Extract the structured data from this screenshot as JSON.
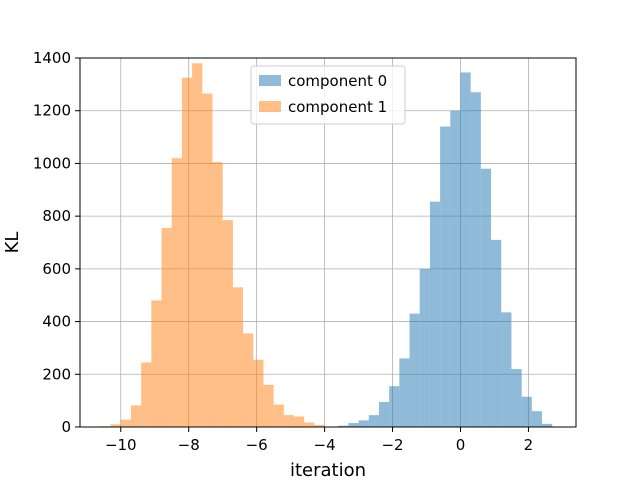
{
  "chart_data": {
    "type": "bar",
    "subtype": "overlaid-histogram",
    "title": "",
    "xlabel": "iteration",
    "ylabel": "KL",
    "xlim": [
      -11.2,
      3.4
    ],
    "ylim": [
      0,
      1400
    ],
    "xticks": [
      -10,
      -8,
      -6,
      -4,
      -2,
      0,
      2
    ],
    "xtick_labels": [
      "−10",
      "−8",
      "−6",
      "−4",
      "−2",
      "0",
      "2"
    ],
    "yticks": [
      0,
      200,
      400,
      600,
      800,
      1000,
      1200,
      1400
    ],
    "ytick_labels": [
      "0",
      "200",
      "400",
      "600",
      "800",
      "1000",
      "1200",
      "1400"
    ],
    "grid": true,
    "legend_position": "top-center",
    "series": [
      {
        "name": "component 0",
        "color": "#1f77b4",
        "opacity": 0.5,
        "bin_edges": [
          -3.6,
          -3.3,
          -3.0,
          -2.7,
          -2.4,
          -2.1,
          -1.8,
          -1.5,
          -1.2,
          -0.9,
          -0.6,
          -0.3,
          0.0,
          0.3,
          0.6,
          0.9,
          1.2,
          1.5,
          1.8,
          2.1,
          2.4,
          2.7
        ],
        "counts": [
          5,
          15,
          25,
          45,
          95,
          155,
          260,
          430,
          600,
          855,
          1140,
          1200,
          1345,
          1270,
          980,
          710,
          435,
          220,
          115,
          60,
          12
        ]
      },
      {
        "name": "component 1",
        "color": "#ff7f0e",
        "opacity": 0.5,
        "bin_edges": [
          -10.6,
          -10.3,
          -10.0,
          -9.7,
          -9.4,
          -9.1,
          -8.8,
          -8.5,
          -8.2,
          -7.9,
          -7.6,
          -7.3,
          -7.0,
          -6.7,
          -6.4,
          -6.1,
          -5.8,
          -5.5,
          -5.2,
          -4.9,
          -4.6,
          -4.3,
          -4.0
        ],
        "counts": [
          3,
          10,
          28,
          82,
          245,
          480,
          755,
          1020,
          1325,
          1380,
          1265,
          1005,
          785,
          530,
          355,
          255,
          160,
          85,
          45,
          40,
          17,
          8
        ]
      }
    ]
  }
}
